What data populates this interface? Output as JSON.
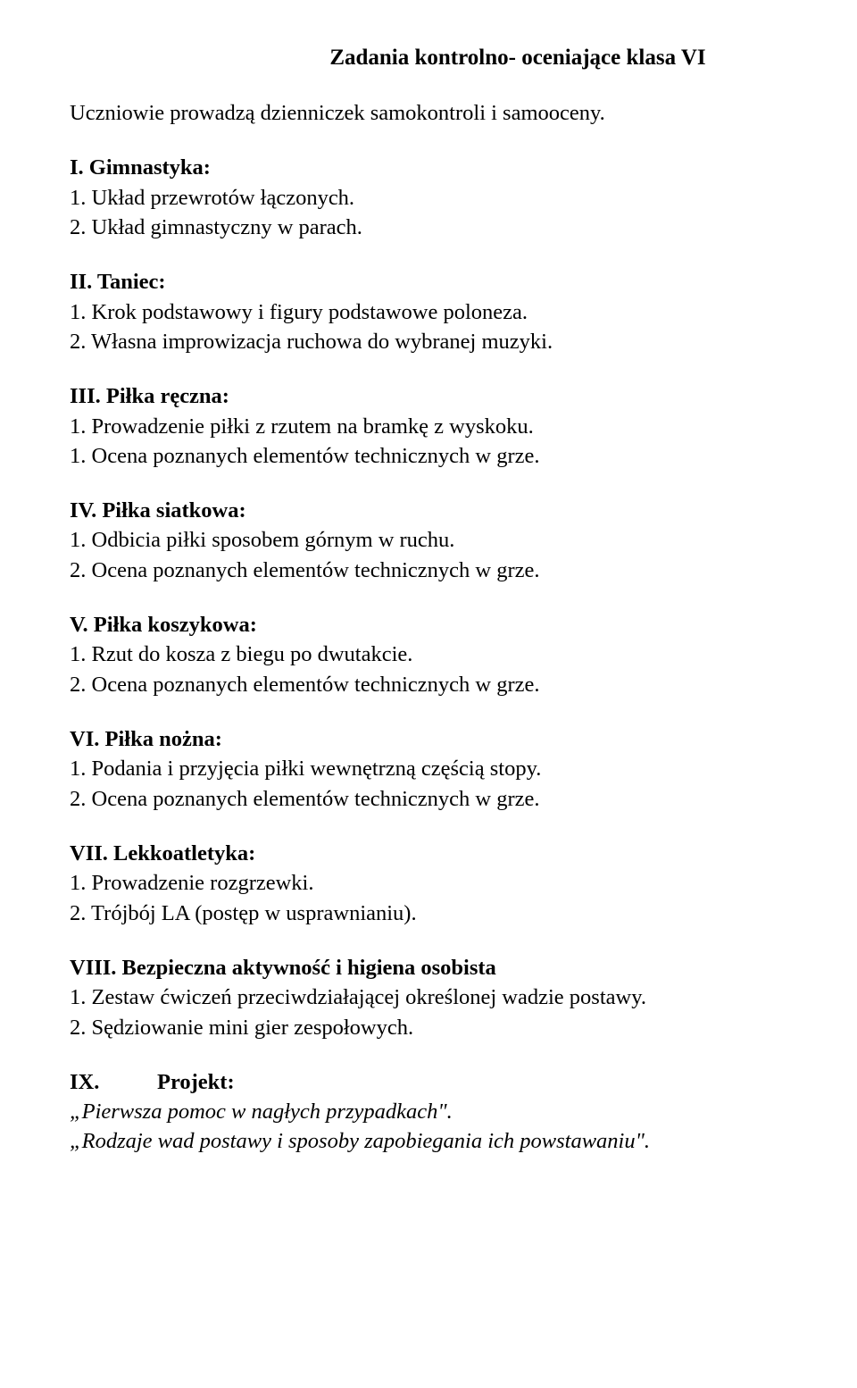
{
  "title": "Zadania kontrolno- oceniające klasa VI",
  "intro": "Uczniowie prowadzą dzienniczek samokontroli i samooceny.",
  "sections": {
    "s1": {
      "roman": "I.",
      "heading": "Gimnastyka:",
      "items": {
        "i1": "1. Układ przewrotów łączonych.",
        "i2": "2. Układ gimnastyczny w parach."
      }
    },
    "s2": {
      "roman": "II.",
      "heading": "Taniec:",
      "items": {
        "i1": "1. Krok podstawowy i figury podstawowe poloneza.",
        "i2": "2. Własna improwizacja ruchowa do wybranej muzyki."
      }
    },
    "s3": {
      "roman": "III.",
      "heading": "Piłka ręczna:",
      "items": {
        "i1": "1. Prowadzenie piłki z rzutem na bramkę z wyskoku.",
        "i2": "1.  Ocena poznanych elementów technicznych w grze."
      }
    },
    "s4": {
      "roman": "IV.",
      "heading": "Piłka siatkowa:",
      "items": {
        "i1": "1. Odbicia piłki sposobem górnym w ruchu.",
        "i2": "2. Ocena poznanych elementów technicznych w grze."
      }
    },
    "s5": {
      "roman": "V.",
      "heading": "Piłka koszykowa:",
      "items": {
        "i1": "1. Rzut do kosza z biegu po dwutakcie.",
        "i2": "2. Ocena poznanych elementów technicznych w grze."
      }
    },
    "s6": {
      "roman": "VI.",
      "heading": "Piłka nożna:",
      "items": {
        "i1": "1. Podania i przyjęcia piłki wewnętrzną częścią stopy.",
        "i2": "2. Ocena poznanych elementów technicznych w grze."
      }
    },
    "s7": {
      "roman": "VII.",
      "heading": "Lekkoatletyka:",
      "items": {
        "i1": "1. Prowadzenie rozgrzewki.",
        "i2": "2. Trójbój LA (postęp w usprawnianiu)."
      }
    },
    "s8": {
      "roman": "VIII.",
      "heading": "Bezpieczna aktywność i higiena osobista",
      "items": {
        "i1": "1. Zestaw ćwiczeń przeciwdziałającej określonej wadzie postawy.",
        "i2": "2. Sędziowanie mini gier zespołowych."
      }
    },
    "s9": {
      "roman": "IX.",
      "heading": "Projekt:",
      "items": {
        "i1": "„Pierwsza pomoc w nagłych przypadkach\".",
        "i2": "„Rodzaje wad postawy i sposoby zapobiegania ich powstawaniu\"."
      }
    }
  }
}
